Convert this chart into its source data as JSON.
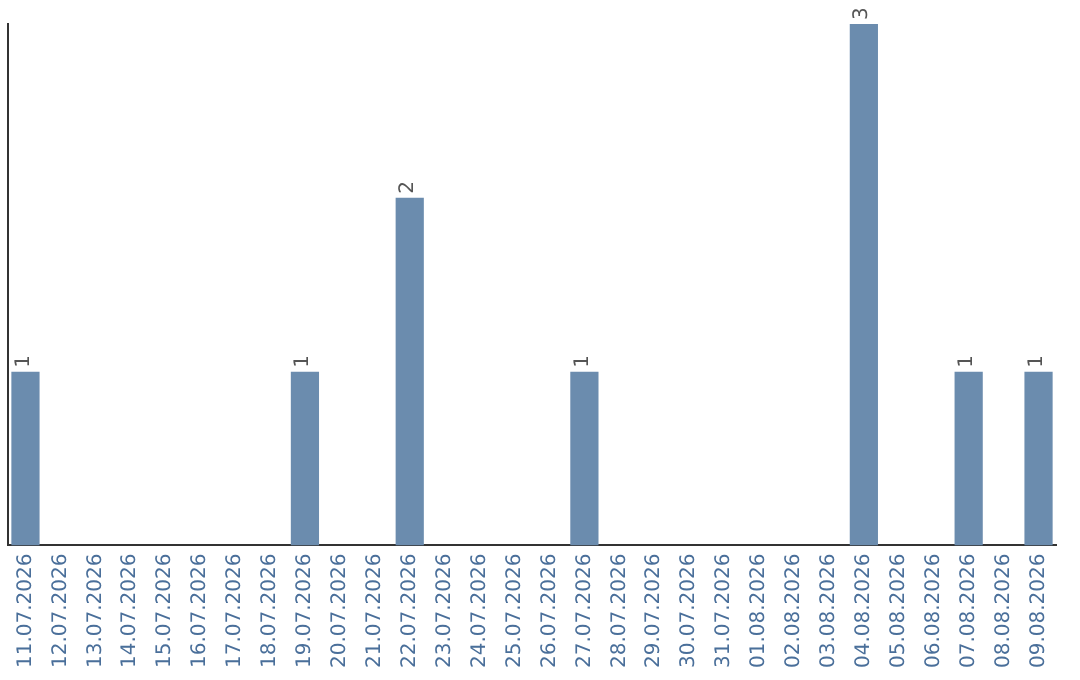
{
  "chart_data": {
    "type": "bar",
    "categories": [
      "11.07.2026",
      "12.07.2026",
      "13.07.2026",
      "14.07.2026",
      "15.07.2026",
      "16.07.2026",
      "17.07.2026",
      "18.07.2026",
      "19.07.2026",
      "20.07.2026",
      "21.07.2026",
      "22.07.2026",
      "23.07.2026",
      "24.07.2026",
      "25.07.2026",
      "26.07.2026",
      "27.07.2026",
      "28.07.2026",
      "29.07.2026",
      "30.07.2026",
      "31.07.2026",
      "01.08.2026",
      "02.08.2026",
      "03.08.2026",
      "04.08.2026",
      "05.08.2026",
      "06.08.2026",
      "07.08.2026",
      "08.08.2026",
      "09.08.2026"
    ],
    "values": [
      1,
      0,
      0,
      0,
      0,
      0,
      0,
      0,
      1,
      0,
      0,
      2,
      0,
      0,
      0,
      0,
      1,
      0,
      0,
      0,
      0,
      0,
      0,
      0,
      3,
      0,
      0,
      1,
      0,
      1
    ],
    "value_labels": [
      "1",
      null,
      null,
      null,
      null,
      null,
      null,
      null,
      "1",
      null,
      null,
      "2",
      null,
      null,
      null,
      null,
      "1",
      null,
      null,
      null,
      null,
      null,
      null,
      null,
      "3",
      null,
      null,
      "1",
      null,
      "1"
    ],
    "color": "#6b8cae",
    "grid": false,
    "legend": false,
    "tick_labels": "x"
  }
}
